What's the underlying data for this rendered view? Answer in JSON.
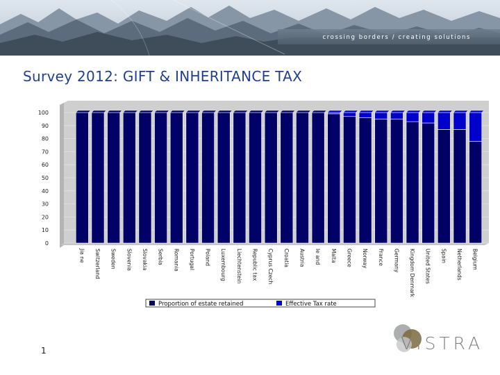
{
  "header": {
    "tagline": "crossing borders / creating solutions"
  },
  "slide": {
    "title": "Survey 2012: GIFT & INHERITANCE TAX",
    "page_number": "1"
  },
  "logo": {
    "text": "VISTRA"
  },
  "colors": {
    "retained": "#000066",
    "effective": "#0000cc",
    "title": "#1f3f8f"
  },
  "chart_data": {
    "type": "bar",
    "stacked": true,
    "categories": [
      "Jia ne",
      "Switzerland",
      "Sweden",
      "Slovenia",
      "Slovakia",
      "Serbia",
      "Romania",
      "Portugal",
      "Poland",
      "Luxembourg",
      "Liechtenstein",
      "Republic tax",
      "Cyprus Czech",
      "Croatia",
      "Austria",
      "Ie and",
      "Malta",
      "Greece",
      "Norway",
      "France",
      "Germany",
      "Kingdom Denmark",
      "United States",
      "Spain",
      "Netherlands",
      "Belgium"
    ],
    "series": [
      {
        "name": "Proportion of estate retained",
        "values": [
          100,
          100,
          100,
          100,
          100,
          100,
          100,
          100,
          100,
          100,
          100,
          100,
          100,
          100,
          100,
          100,
          99,
          97,
          96,
          95,
          95,
          93,
          92,
          87,
          87,
          78
        ]
      },
      {
        "name": "Effective Tax rate",
        "values": [
          0,
          0,
          0,
          0,
          0,
          0,
          0,
          0,
          0,
          0,
          0,
          0,
          0,
          0,
          0,
          0,
          1,
          3,
          4,
          5,
          5,
          7,
          8,
          13,
          13,
          22
        ]
      }
    ],
    "yticks": [
      "100",
      "90",
      "80",
      "70",
      "60",
      "50",
      "40",
      "30",
      "20",
      "10",
      "0"
    ],
    "ylim": [
      0,
      100
    ],
    "grid": true,
    "legend": "bottom"
  }
}
